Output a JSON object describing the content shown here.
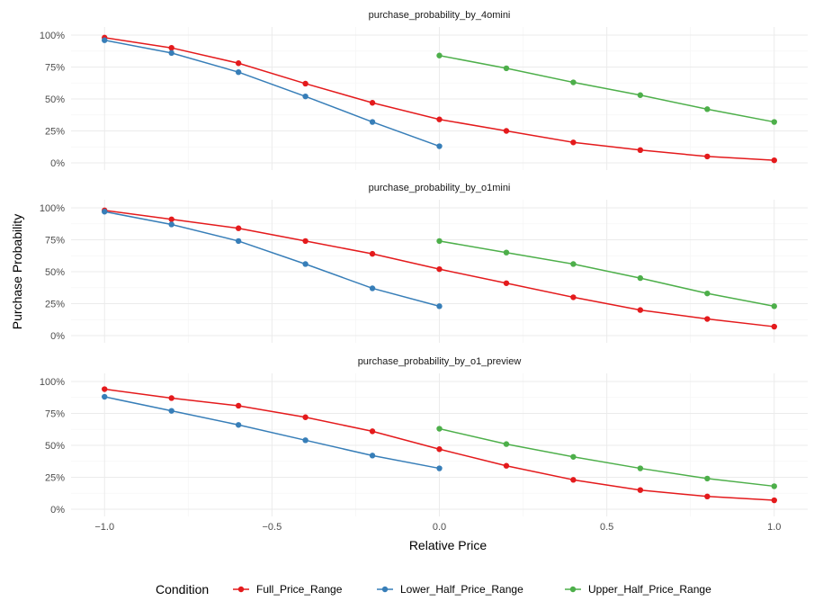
{
  "chart_data": {
    "type": "line",
    "xlabel": "Relative Price",
    "ylabel": "Purchase Probability",
    "xlim": [
      -1.1,
      1.1
    ],
    "ylim": [
      0,
      1
    ],
    "x_ticks": [
      -1.0,
      -0.5,
      0.0,
      0.5,
      1.0
    ],
    "x_tick_labels": [
      "−1.0",
      "−0.5",
      "0.0",
      "0.5",
      "1.0"
    ],
    "y_ticks": [
      0,
      0.25,
      0.5,
      0.75,
      1.0
    ],
    "y_tick_labels": [
      "0%",
      "25%",
      "50%",
      "75%",
      "100%"
    ],
    "grid": true,
    "legend": {
      "title": "Condition",
      "position": "bottom",
      "entries": [
        {
          "name": "Full_Price_Range",
          "color": "#e41a1c"
        },
        {
          "name": "Lower_Half_Price_Range",
          "color": "#377eb8"
        },
        {
          "name": "Upper_Half_Price_Range",
          "color": "#4daf4a"
        }
      ]
    },
    "panels": [
      {
        "title": "purchase_probability_by_4omini",
        "series": [
          {
            "name": "Full_Price_Range",
            "color": "#e41a1c",
            "x": [
              -1.0,
              -0.8,
              -0.6,
              -0.4,
              -0.2,
              0.0,
              0.2,
              0.4,
              0.6,
              0.8,
              1.0
            ],
            "y": [
              0.98,
              0.9,
              0.78,
              0.62,
              0.47,
              0.34,
              0.25,
              0.16,
              0.1,
              0.05,
              0.02
            ]
          },
          {
            "name": "Lower_Half_Price_Range",
            "color": "#377eb8",
            "x": [
              -1.0,
              -0.8,
              -0.6,
              -0.4,
              -0.2,
              0.0
            ],
            "y": [
              0.96,
              0.86,
              0.71,
              0.52,
              0.32,
              0.13
            ]
          },
          {
            "name": "Upper_Half_Price_Range",
            "color": "#4daf4a",
            "x": [
              0.0,
              0.2,
              0.4,
              0.6,
              0.8,
              1.0
            ],
            "y": [
              0.84,
              0.74,
              0.63,
              0.53,
              0.42,
              0.32
            ]
          }
        ]
      },
      {
        "title": "purchase_probability_by_o1mini",
        "series": [
          {
            "name": "Full_Price_Range",
            "color": "#e41a1c",
            "x": [
              -1.0,
              -0.8,
              -0.6,
              -0.4,
              -0.2,
              0.0,
              0.2,
              0.4,
              0.6,
              0.8,
              1.0
            ],
            "y": [
              0.98,
              0.91,
              0.84,
              0.74,
              0.64,
              0.52,
              0.41,
              0.3,
              0.2,
              0.13,
              0.07
            ]
          },
          {
            "name": "Lower_Half_Price_Range",
            "color": "#377eb8",
            "x": [
              -1.0,
              -0.8,
              -0.6,
              -0.4,
              -0.2,
              0.0
            ],
            "y": [
              0.97,
              0.87,
              0.74,
              0.56,
              0.37,
              0.23
            ]
          },
          {
            "name": "Upper_Half_Price_Range",
            "color": "#4daf4a",
            "x": [
              0.0,
              0.2,
              0.4,
              0.6,
              0.8,
              1.0
            ],
            "y": [
              0.74,
              0.65,
              0.56,
              0.45,
              0.33,
              0.23
            ]
          }
        ]
      },
      {
        "title": "purchase_probability_by_o1_preview",
        "series": [
          {
            "name": "Full_Price_Range",
            "color": "#e41a1c",
            "x": [
              -1.0,
              -0.8,
              -0.6,
              -0.4,
              -0.2,
              0.0,
              0.2,
              0.4,
              0.6,
              0.8,
              1.0
            ],
            "y": [
              0.94,
              0.87,
              0.81,
              0.72,
              0.61,
              0.47,
              0.34,
              0.23,
              0.15,
              0.1,
              0.07
            ]
          },
          {
            "name": "Lower_Half_Price_Range",
            "color": "#377eb8",
            "x": [
              -1.0,
              -0.8,
              -0.6,
              -0.4,
              -0.2,
              0.0
            ],
            "y": [
              0.88,
              0.77,
              0.66,
              0.54,
              0.42,
              0.32
            ]
          },
          {
            "name": "Upper_Half_Price_Range",
            "color": "#4daf4a",
            "x": [
              0.0,
              0.2,
              0.4,
              0.6,
              0.8,
              1.0
            ],
            "y": [
              0.63,
              0.51,
              0.41,
              0.32,
              0.24,
              0.18
            ]
          }
        ]
      }
    ]
  }
}
